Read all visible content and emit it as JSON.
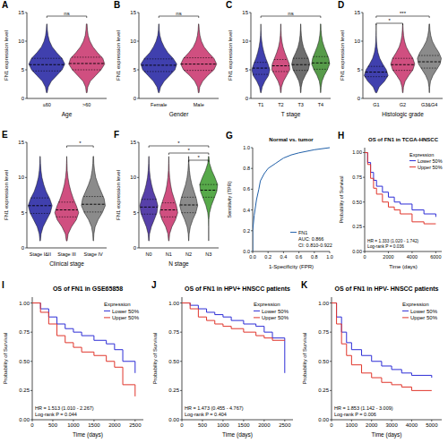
{
  "chart_data": [
    {
      "type": "violin",
      "panel_label": "A",
      "x_label": "Age",
      "y_label": "FN1 expression level",
      "categories": [
        "≤60",
        ">60"
      ],
      "colors": [
        "#1f1fa0",
        "#c8306a"
      ],
      "ylim": [
        0,
        15
      ],
      "yticks": [
        0,
        5,
        10,
        15
      ],
      "grid": false,
      "density_y": [
        1,
        2,
        3,
        4,
        5,
        6,
        7,
        8,
        9,
        10,
        11,
        12,
        13
      ],
      "density": [
        [
          0.02,
          0.08,
          0.25,
          0.55,
          0.85,
          1.0,
          0.85,
          0.55,
          0.3,
          0.15,
          0.07,
          0.03,
          0.01
        ],
        [
          0.02,
          0.06,
          0.2,
          0.5,
          0.8,
          1.0,
          0.9,
          0.6,
          0.35,
          0.18,
          0.08,
          0.04,
          0.02
        ]
      ],
      "medians": [
        5.9,
        6.1
      ],
      "q1": [
        4.8,
        5.0
      ],
      "q3": [
        7.0,
        7.2
      ],
      "comparisons": [
        {
          "from": 0,
          "to": 1,
          "label": "ns"
        }
      ]
    },
    {
      "type": "violin",
      "panel_label": "B",
      "x_label": "Gender",
      "y_label": "FN1 expression level",
      "categories": [
        "Female",
        "Male"
      ],
      "colors": [
        "#1f1fa0",
        "#c8306a"
      ],
      "ylim": [
        0,
        15
      ],
      "yticks": [
        0,
        5,
        10,
        15
      ],
      "grid": false,
      "density_y": [
        1,
        2,
        3,
        4,
        5,
        6,
        7,
        8,
        9,
        10,
        11,
        12,
        13
      ],
      "density": [
        [
          0.02,
          0.1,
          0.3,
          0.6,
          0.9,
          1.0,
          0.8,
          0.5,
          0.3,
          0.15,
          0.06,
          0.02,
          0.01
        ],
        [
          0.02,
          0.06,
          0.22,
          0.5,
          0.85,
          1.0,
          0.85,
          0.55,
          0.3,
          0.15,
          0.07,
          0.03,
          0.01
        ]
      ],
      "medians": [
        5.8,
        6.0
      ],
      "q1": [
        4.7,
        4.9
      ],
      "q3": [
        6.9,
        7.1
      ],
      "comparisons": [
        {
          "from": 0,
          "to": 1,
          "label": "ns"
        }
      ]
    },
    {
      "type": "violin",
      "panel_label": "C",
      "x_label": "T stage",
      "y_label": "FN1 expression level",
      "categories": [
        "T1",
        "T2",
        "T3",
        "T4"
      ],
      "colors": [
        "#1f1fa0",
        "#c8306a",
        "#555555",
        "#3a8a2a"
      ],
      "ylim": [
        0,
        15
      ],
      "yticks": [
        0,
        5,
        10,
        15
      ],
      "grid": false,
      "density_y": [
        1,
        2,
        3,
        4,
        5,
        6,
        7,
        8,
        9,
        10,
        11,
        12,
        13
      ],
      "density": [
        [
          0.03,
          0.15,
          0.45,
          0.85,
          1.0,
          0.8,
          0.55,
          0.35,
          0.2,
          0.1,
          0.04,
          0.01,
          0
        ],
        [
          0.02,
          0.08,
          0.3,
          0.65,
          1.0,
          0.95,
          0.7,
          0.45,
          0.25,
          0.12,
          0.05,
          0.02,
          0.01
        ],
        [
          0.02,
          0.06,
          0.2,
          0.5,
          0.85,
          1.0,
          0.85,
          0.55,
          0.3,
          0.15,
          0.07,
          0.03,
          0.01
        ],
        [
          0.01,
          0.05,
          0.15,
          0.4,
          0.75,
          1.0,
          0.9,
          0.65,
          0.4,
          0.2,
          0.1,
          0.04,
          0.02
        ]
      ],
      "medians": [
        5.3,
        5.7,
        5.9,
        6.2
      ],
      "q1": [
        4.2,
        4.7,
        4.9,
        5.1
      ],
      "q3": [
        6.3,
        6.8,
        7.0,
        7.3
      ],
      "comparisons": [
        {
          "from": 0,
          "to": 3,
          "label": "ns"
        }
      ]
    },
    {
      "type": "violin",
      "panel_label": "D",
      "x_label": "Histologic grade",
      "y_label": "FN1 expression level",
      "categories": [
        "G1",
        "G2",
        "G3&G4"
      ],
      "colors": [
        "#1f1fa0",
        "#c8306a",
        "#777777"
      ],
      "ylim": [
        0,
        15
      ],
      "yticks": [
        0,
        5,
        10,
        15
      ],
      "grid": false,
      "density_y": [
        1,
        2,
        3,
        4,
        5,
        6,
        7,
        8,
        9,
        10,
        11,
        12,
        13
      ],
      "density": [
        [
          0.05,
          0.25,
          0.7,
          1.0,
          0.85,
          0.55,
          0.3,
          0.15,
          0.07,
          0.03,
          0.01,
          0,
          0
        ],
        [
          0.02,
          0.06,
          0.2,
          0.5,
          0.85,
          1.0,
          0.85,
          0.55,
          0.3,
          0.15,
          0.07,
          0.03,
          0.01
        ],
        [
          0.01,
          0.03,
          0.1,
          0.3,
          0.6,
          0.9,
          1.0,
          0.8,
          0.5,
          0.25,
          0.12,
          0.05,
          0.02
        ]
      ],
      "medians": [
        4.6,
        5.9,
        6.4
      ],
      "q1": [
        3.8,
        4.9,
        5.3
      ],
      "q3": [
        5.6,
        7.0,
        7.5
      ],
      "comparisons": [
        {
          "from": 0,
          "to": 2,
          "label": "***"
        },
        {
          "from": 0,
          "to": 1,
          "label": "*"
        }
      ]
    },
    {
      "type": "violin",
      "panel_label": "E",
      "x_label": "Clinical stage",
      "y_label": "FN1 expression level",
      "categories": [
        "Stage I&II",
        "Stage III",
        "Stage IV"
      ],
      "colors": [
        "#1f1fa0",
        "#c8306a",
        "#777777"
      ],
      "ylim": [
        0,
        15
      ],
      "yticks": [
        0,
        5,
        10,
        15
      ],
      "grid": false,
      "density_y": [
        1,
        2,
        3,
        4,
        5,
        6,
        7,
        8,
        9,
        10,
        11,
        12,
        13
      ],
      "density": [
        [
          0.02,
          0.08,
          0.25,
          0.55,
          0.85,
          1.0,
          0.8,
          0.5,
          0.3,
          0.15,
          0.07,
          0.03,
          0.01
        ],
        [
          0.03,
          0.12,
          0.4,
          0.8,
          1.0,
          0.8,
          0.55,
          0.35,
          0.2,
          0.1,
          0.04,
          0.02,
          0
        ],
        [
          0.01,
          0.05,
          0.15,
          0.4,
          0.75,
          1.0,
          0.9,
          0.65,
          0.4,
          0.2,
          0.1,
          0.04,
          0.02
        ]
      ],
      "medians": [
        6.0,
        5.4,
        6.2
      ],
      "q1": [
        4.9,
        4.4,
        5.1
      ],
      "q3": [
        7.1,
        6.5,
        7.3
      ],
      "comparisons": [
        {
          "from": 1,
          "to": 2,
          "label": "*"
        }
      ]
    },
    {
      "type": "violin",
      "panel_label": "F",
      "x_label": "N stage",
      "y_label": "FN1 expression level",
      "categories": [
        "N0",
        "N1",
        "N2",
        "N3"
      ],
      "colors": [
        "#3a1f9a",
        "#c8306a",
        "#777777",
        "#3a9a2a"
      ],
      "ylim": [
        0,
        15
      ],
      "yticks": [
        0,
        5,
        10,
        15
      ],
      "grid": false,
      "density_y": [
        1,
        2,
        3,
        4,
        5,
        6,
        7,
        8,
        9,
        10,
        11,
        12,
        13
      ],
      "density": [
        [
          0.02,
          0.08,
          0.28,
          0.6,
          0.9,
          1.0,
          0.8,
          0.5,
          0.3,
          0.15,
          0.07,
          0.03,
          0.01
        ],
        [
          0.02,
          0.1,
          0.35,
          0.75,
          1.0,
          0.85,
          0.6,
          0.35,
          0.2,
          0.1,
          0.04,
          0.02,
          0
        ],
        [
          0.01,
          0.05,
          0.18,
          0.45,
          0.8,
          1.0,
          0.85,
          0.6,
          0.35,
          0.18,
          0.08,
          0.03,
          0.01
        ],
        [
          0,
          0,
          0,
          0.02,
          0.1,
          0.3,
          0.6,
          0.9,
          1.0,
          0.7,
          0.35,
          0.1,
          0.02
        ]
      ],
      "medians": [
        5.8,
        5.4,
        6.1,
        8.2
      ],
      "q1": [
        4.8,
        4.4,
        5.0,
        7.2
      ],
      "q3": [
        6.9,
        6.4,
        7.2,
        9.0
      ],
      "comparisons": [
        {
          "from": 0,
          "to": 3,
          "label": "*"
        },
        {
          "from": 1,
          "to": 3,
          "label": "*"
        },
        {
          "from": 2,
          "to": 3,
          "label": "*"
        }
      ]
    },
    {
      "type": "line",
      "panel_label": "G",
      "title": "Normal vs. tumor",
      "x_label": "1-Specificity (FPR)",
      "y_label": "Sensitivity (TPR)",
      "xlim": [
        0,
        1
      ],
      "ylim": [
        0,
        1
      ],
      "xticks": [
        {
          "value": 0,
          "label": "0.0"
        },
        0.2,
        0.4,
        0.6,
        0.8,
        {
          "value": 1,
          "label": "1.0"
        }
      ],
      "yticks": [
        {
          "value": 0,
          "label": "0.0"
        },
        0.2,
        0.4,
        0.6,
        0.8,
        {
          "value": 1,
          "label": "1.0"
        }
      ],
      "grid": false,
      "legend": "lower right",
      "x": [
        0,
        0,
        0.02,
        0.05,
        0.08,
        0.1,
        0.15,
        0.2,
        0.3,
        0.4,
        0.5,
        0.6,
        0.8,
        1.0
      ],
      "series": [
        {
          "name": "FN1",
          "color": "#1f5fa8",
          "values": [
            0,
            0.2,
            0.35,
            0.5,
            0.6,
            0.68,
            0.75,
            0.8,
            0.85,
            0.9,
            0.93,
            0.95,
            0.98,
            1.0
          ]
        }
      ],
      "annotations": [
        "AUC: 0.866",
        "CI: 0.810-0.922"
      ]
    },
    {
      "type": "step",
      "panel_label": "H",
      "title": "OS of FN1 in TCGA-HNSCC",
      "x_label": "Time (days)",
      "y_label": "Probability of Survival",
      "xlim": [
        0,
        6500
      ],
      "xticks": [
        0,
        2000,
        4000,
        6000
      ],
      "ylim": [
        0,
        1.05
      ],
      "yticks": [
        {
          "value": 0,
          "label": "0.00"
        },
        {
          "value": 0.25,
          "label": "0.25"
        },
        {
          "value": 0.5,
          "label": "0.50"
        },
        {
          "value": 0.75,
          "label": "0.75"
        },
        {
          "value": 1,
          "label": "1.00"
        }
      ],
      "grid": false,
      "legend": "upper right",
      "legend_title": "Expression",
      "series": [
        {
          "name": "Lower 50%",
          "color": "#2d2dd6",
          "x": [
            0,
            250,
            500,
            750,
            1000,
            1500,
            2000,
            2500,
            3000,
            4000,
            5000,
            6000
          ],
          "values": [
            1,
            0.9,
            0.8,
            0.72,
            0.66,
            0.6,
            0.55,
            0.5,
            0.48,
            0.42,
            0.38,
            0.35
          ]
        },
        {
          "name": "Upper 50%",
          "color": "#e0352b",
          "x": [
            0,
            250,
            500,
            750,
            1000,
            1500,
            2000,
            2500,
            3000,
            4000,
            5000,
            6000
          ],
          "values": [
            1,
            0.88,
            0.74,
            0.64,
            0.58,
            0.5,
            0.45,
            0.42,
            0.38,
            0.3,
            0.28,
            0.28
          ]
        }
      ],
      "annotations": [
        "HR = 1.333 (1.020 - 1.742)",
        "Log-rank P = 0.036"
      ]
    },
    {
      "type": "step",
      "panel_label": "I",
      "title": "OS of FN1 in GSE65858",
      "x_label": "Time (days)",
      "y_label": "Probability of Survival",
      "xlim": [
        0,
        2700
      ],
      "xticks": [
        0,
        500,
        1000,
        1500,
        2000,
        2500
      ],
      "ylim": [
        0,
        1.05
      ],
      "yticks": [
        {
          "value": 0,
          "label": "0.00"
        },
        {
          "value": 0.25,
          "label": "0.25"
        },
        {
          "value": 0.5,
          "label": "0.50"
        },
        {
          "value": 0.75,
          "label": "0.75"
        },
        {
          "value": 1,
          "label": "1.00"
        }
      ],
      "grid": false,
      "legend": "upper right",
      "legend_title": "Expression",
      "series": [
        {
          "name": "Lower 50%",
          "color": "#2d2dd6",
          "x": [
            0,
            200,
            400,
            600,
            800,
            1000,
            1200,
            1500,
            1800,
            2000,
            2200,
            2500
          ],
          "values": [
            1,
            0.95,
            0.88,
            0.82,
            0.78,
            0.75,
            0.72,
            0.68,
            0.65,
            0.6,
            0.5,
            0.4
          ]
        },
        {
          "name": "Upper 50%",
          "color": "#e0352b",
          "x": [
            0,
            200,
            400,
            600,
            800,
            1000,
            1200,
            1500,
            1800,
            2000,
            2200,
            2500
          ],
          "values": [
            1,
            0.92,
            0.82,
            0.72,
            0.66,
            0.62,
            0.58,
            0.55,
            0.5,
            0.45,
            0.3,
            0.2
          ]
        }
      ],
      "annotations": [
        "HR = 1.513 (1.010 - 2.267)",
        "Log-rank P = 0.044"
      ]
    },
    {
      "type": "step",
      "panel_label": "J",
      "title": "OS of FN1 in HPV+ HNSCC patients",
      "x_label": "Time (days)",
      "y_label": "Probability of Survival",
      "xlim": [
        0,
        2700
      ],
      "xticks": [
        0,
        500,
        1000,
        1500,
        2000,
        2500
      ],
      "ylim": [
        0,
        1.05
      ],
      "yticks": [
        {
          "value": 0,
          "label": "0.00"
        },
        {
          "value": 0.25,
          "label": "0.25"
        },
        {
          "value": 0.5,
          "label": "0.50"
        },
        {
          "value": 0.75,
          "label": "0.75"
        },
        {
          "value": 1,
          "label": "1.00"
        }
      ],
      "grid": false,
      "legend": "upper right",
      "legend_title": "Expression",
      "series": [
        {
          "name": "Lower 50%",
          "color": "#2d2dd6",
          "x": [
            0,
            200,
            400,
            600,
            800,
            1000,
            1200,
            1500,
            1800,
            2000,
            2200,
            2500
          ],
          "values": [
            1,
            0.98,
            0.95,
            0.92,
            0.9,
            0.88,
            0.85,
            0.82,
            0.8,
            0.75,
            0.7,
            0.4
          ]
        },
        {
          "name": "Upper 50%",
          "color": "#e0352b",
          "x": [
            0,
            200,
            400,
            600,
            800,
            1000,
            1200,
            1500,
            1800,
            2000,
            2200,
            2500
          ],
          "values": [
            1,
            0.95,
            0.88,
            0.85,
            0.82,
            0.8,
            0.78,
            0.75,
            0.72,
            0.7,
            0.68,
            0.68
          ]
        }
      ],
      "annotations": [
        "HR = 1.473 (0.455 - 4.767)",
        "Log-rank P = 0.404"
      ]
    },
    {
      "type": "step",
      "panel_label": "K",
      "title": "OS of FN1 in HPV- HNSCC patients",
      "x_label": "Time (days)",
      "y_label": "Probability of Survival",
      "xlim": [
        0,
        5500
      ],
      "xticks": [
        0,
        1000,
        2000,
        3000,
        4000,
        5000
      ],
      "ylim": [
        0,
        1.05
      ],
      "yticks": [
        {
          "value": 0,
          "label": "0.00"
        },
        {
          "value": 0.25,
          "label": "0.25"
        },
        {
          "value": 0.5,
          "label": "0.50"
        },
        {
          "value": 0.75,
          "label": "0.75"
        },
        {
          "value": 1,
          "label": "1.00"
        }
      ],
      "grid": false,
      "legend": "upper right",
      "legend_title": "Expression",
      "series": [
        {
          "name": "Lower 50%",
          "color": "#2d2dd6",
          "x": [
            0,
            250,
            500,
            750,
            1000,
            1500,
            2000,
            2500,
            3000,
            3500,
            4000,
            5000
          ],
          "values": [
            1,
            0.88,
            0.75,
            0.66,
            0.6,
            0.55,
            0.5,
            0.46,
            0.43,
            0.4,
            0.38,
            0.36
          ]
        },
        {
          "name": "Upper 50%",
          "color": "#e0352b",
          "x": [
            0,
            250,
            500,
            750,
            1000,
            1500,
            2000,
            2500,
            3000,
            3500,
            4000,
            5000
          ],
          "values": [
            1,
            0.82,
            0.65,
            0.55,
            0.47,
            0.4,
            0.36,
            0.32,
            0.3,
            0.28,
            0.25,
            0.25
          ]
        }
      ],
      "annotations": [
        "HR = 1.853 (1.142 - 3.009)",
        "Log-rank P = 0.006"
      ]
    }
  ]
}
